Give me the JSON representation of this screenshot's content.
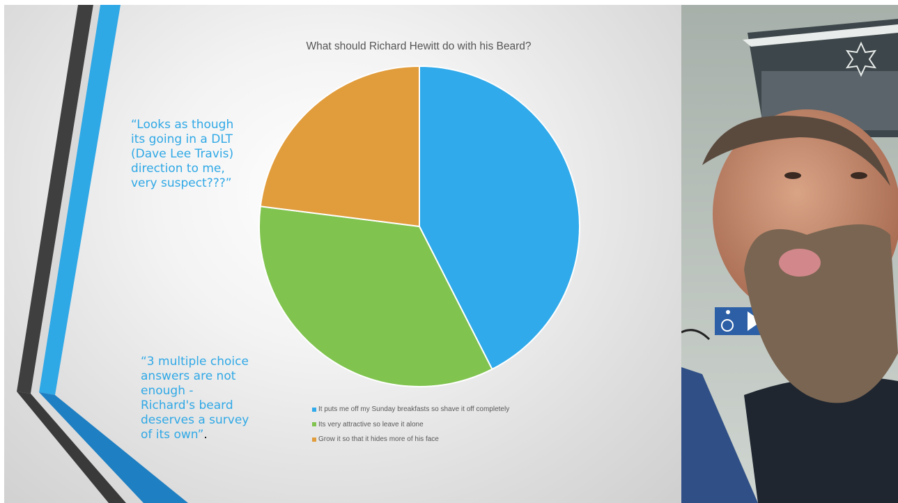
{
  "chart_data": {
    "type": "pie",
    "title": "What should Richard Hewitt do with his Beard?",
    "categories": [
      "It puts me off my Sunday breakfasts so shave it off completely",
      "Its very attractive so leave it alone",
      "Grow it so that it hides more of his face"
    ],
    "values": [
      42.5,
      34.5,
      23.0
    ],
    "colors": [
      "#30aaea",
      "#80c34f",
      "#e19c3c"
    ],
    "legend_position": "bottom"
  },
  "quotes": {
    "quote1": "“Looks as though its going in a DLT (Dave Lee Travis) direction to me, very suspect???”",
    "quote2_main": "“3 multiple choice answers are not enough -\n Richard's beard deserves a survey of its own”",
    "quote2_tail": "."
  },
  "photo": {
    "sign_icon": "wheelchair-icon"
  },
  "colors": {
    "accent_blue": "#2fa8e6",
    "dark_stripe": "#3f3f3f"
  }
}
